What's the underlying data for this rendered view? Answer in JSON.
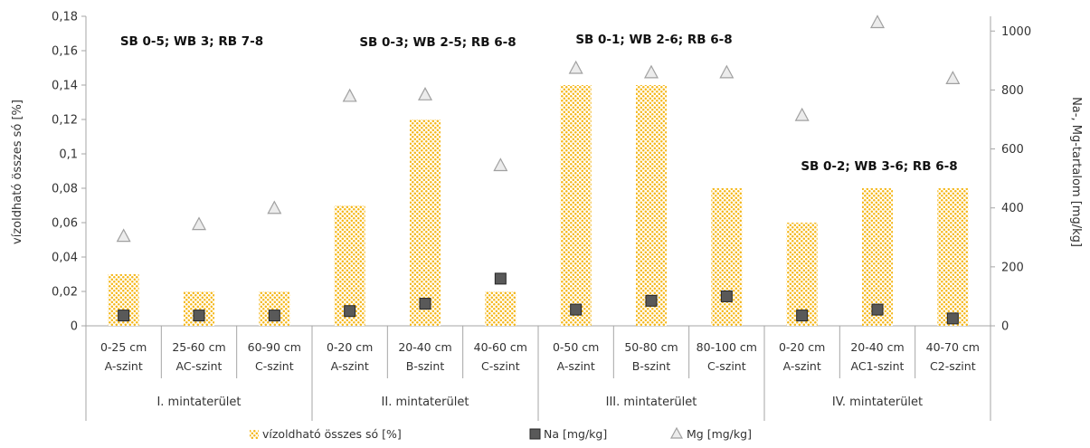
{
  "chart_data": {
    "type": "bar",
    "categories": [
      [
        "0-25 cm",
        "A-szint"
      ],
      [
        "25-60 cm",
        "AC-szint"
      ],
      [
        "60-90 cm",
        "C-szint"
      ],
      [
        "0-20 cm",
        "A-szint"
      ],
      [
        "20-40 cm",
        "B-szint"
      ],
      [
        "40-60 cm",
        "C-szint"
      ],
      [
        "0-50 cm",
        "A-szint"
      ],
      [
        "50-80 cm",
        "B-szint"
      ],
      [
        "80-100 cm",
        "C-szint"
      ],
      [
        "0-20 cm",
        "A-szint"
      ],
      [
        "20-40 cm",
        "AC1-szint"
      ],
      [
        "40-70 cm",
        "C2-szint"
      ]
    ],
    "groups": [
      {
        "label": "I. mintaterület",
        "start": 0,
        "end": 2
      },
      {
        "label": "II. mintaterület",
        "start": 3,
        "end": 5
      },
      {
        "label": "III. mintaterület",
        "start": 6,
        "end": 8
      },
      {
        "label": "IV. mintaterület",
        "start": 9,
        "end": 11
      }
    ],
    "series": [
      {
        "name": "vízoldható összes só [%]",
        "axis": "left",
        "kind": "bar",
        "values": [
          0.03,
          0.02,
          0.02,
          0.07,
          0.12,
          0.02,
          0.14,
          0.14,
          0.08,
          0.06,
          0.08,
          0.08
        ]
      },
      {
        "name": "Na [mg/kg]",
        "axis": "right",
        "kind": "square-marker",
        "values": [
          35,
          35,
          35,
          50,
          75,
          160,
          55,
          85,
          100,
          35,
          55,
          25
        ]
      },
      {
        "name": "Mg [mg/kg]",
        "axis": "right",
        "kind": "triangle-marker",
        "values": [
          305,
          345,
          400,
          780,
          785,
          545,
          875,
          860,
          860,
          715,
          1030,
          840
        ]
      }
    ],
    "ylabel": "vízoldható összes só [%]",
    "y2label": "Na-, Mg-tartalom [mg/kg]",
    "ylim": [
      0,
      0.18
    ],
    "y2lim": [
      0,
      1050
    ],
    "yticks": [
      "0",
      "0,02",
      "0,04",
      "0,06",
      "0,08",
      "0,1",
      "0,12",
      "0,14",
      "0,16",
      "0,18"
    ],
    "y2ticks": [
      "0",
      "200",
      "400",
      "600",
      "800",
      "1000"
    ],
    "annotations": [
      "SB 0-5; WB 3; RB 7-8",
      "SB 0-3; WB 2-5; RB 6-8",
      "SB 0-1; WB 2-6; RB 6-8",
      "SB 0-2; WB 3-6; RB 6-8"
    ],
    "colors": {
      "bar": "#f5b719",
      "na": "#595959",
      "mg": "#c8c8c8"
    },
    "grid": false,
    "legend": "bottom"
  }
}
